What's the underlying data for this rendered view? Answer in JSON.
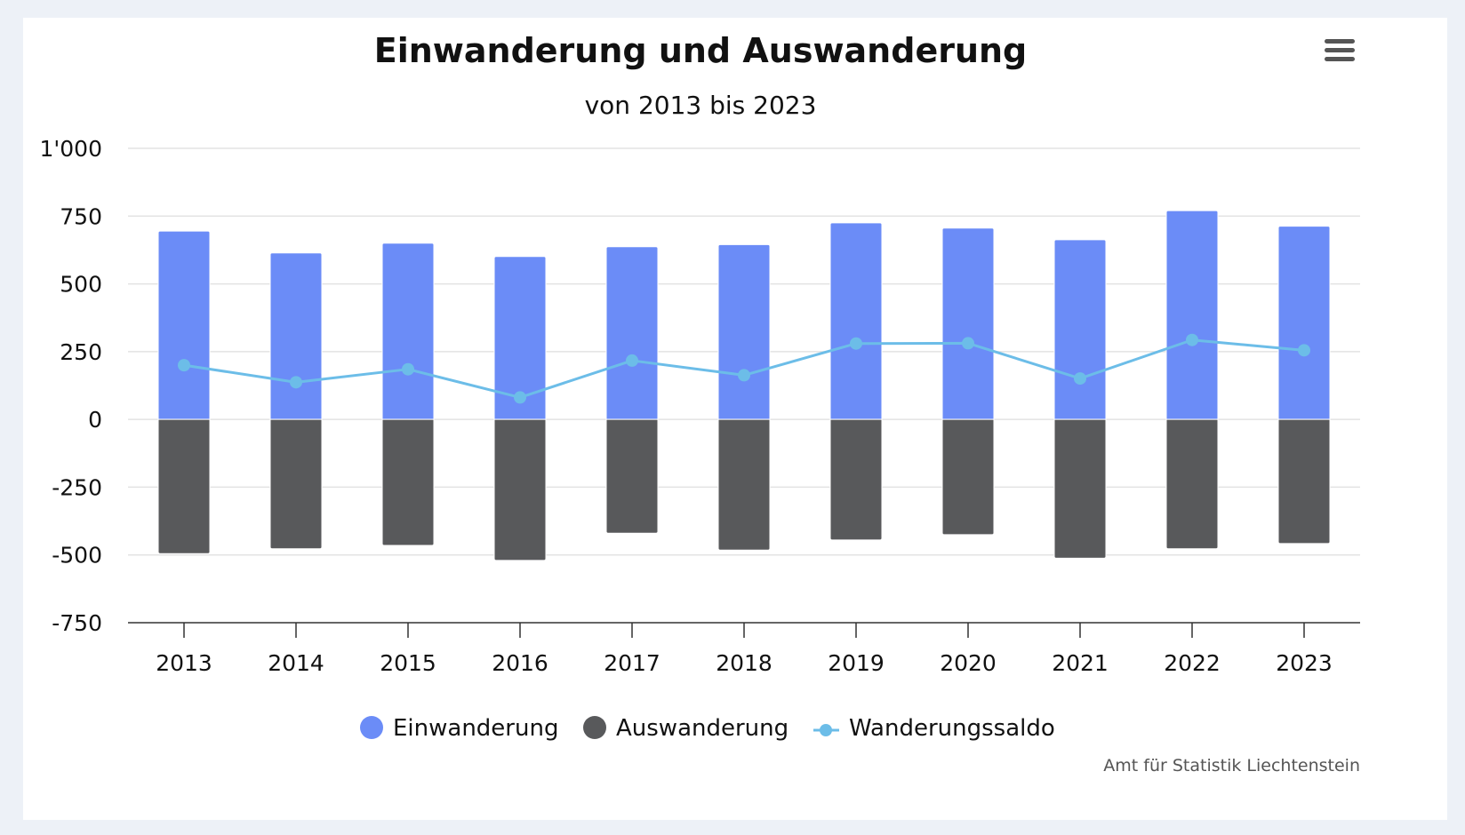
{
  "chart_data": {
    "type": "bar",
    "title": "Einwanderung und Auswanderung",
    "subtitle": "von 2013 bis 2023",
    "categories": [
      "2013",
      "2014",
      "2015",
      "2016",
      "2017",
      "2018",
      "2019",
      "2020",
      "2021",
      "2022",
      "2023"
    ],
    "series": [
      {
        "name": "Einwanderung",
        "type": "bar",
        "color": "#6b8cf7",
        "values": [
          695,
          614,
          650,
          601,
          637,
          645,
          725,
          706,
          663,
          770,
          713
        ]
      },
      {
        "name": "Auswanderung",
        "type": "bar",
        "color": "#58595b",
        "values": [
          -495,
          -477,
          -465,
          -520,
          -420,
          -482,
          -445,
          -425,
          -512,
          -477,
          -458
        ]
      },
      {
        "name": "Wanderungssaldo",
        "type": "line",
        "color": "#6cbde8",
        "values": [
          200,
          137,
          185,
          81,
          217,
          163,
          280,
          281,
          151,
          293,
          255
        ]
      }
    ],
    "y_ticks": [
      "1'000",
      "750",
      "500",
      "250",
      "0",
      "-250",
      "-500",
      "-750"
    ],
    "y_tick_values": [
      1000,
      750,
      500,
      250,
      0,
      -250,
      -500,
      -750
    ],
    "ylim": [
      -750,
      1000
    ],
    "grid": true,
    "legend_position": "bottom-center",
    "credit": "Amt für Statistik Liechtenstein"
  },
  "menu_icon": "hamburger-menu-icon"
}
